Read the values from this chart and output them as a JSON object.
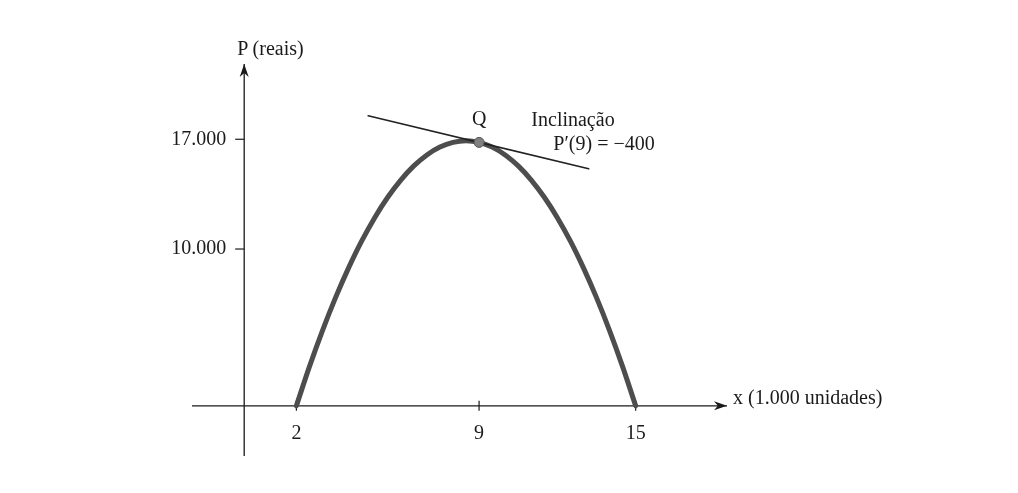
{
  "chart_data": {
    "type": "line",
    "xlabel": "x (1.000 unidades)",
    "ylabel": "P (reais)",
    "xlim": [
      -2,
      18.5
    ],
    "ylim": [
      -3200,
      21800
    ],
    "xticks": [
      2,
      9,
      15
    ],
    "yticks": [
      {
        "value": 10000,
        "label": "10.000"
      },
      {
        "value": 17000,
        "label": "17.000"
      }
    ],
    "marker": "none",
    "series": [
      {
        "color": "#4d4d4d",
        "x": [
          2,
          2.5,
          3,
          3.5,
          4,
          4.5,
          5,
          5.5,
          6,
          6.5,
          7,
          7.5,
          8,
          8.5,
          9,
          9.5,
          10,
          10.5,
          11,
          11.5,
          12,
          12.5,
          13,
          13.5,
          14,
          14.5,
          15
        ],
        "values": [
          0,
          2500,
          4800,
          6900,
          8800,
          10500,
          12000,
          13300,
          14400,
          15300,
          16000,
          16500,
          16800,
          16900,
          16800,
          16500,
          16000,
          15300,
          14400,
          13300,
          12000,
          10500,
          8800,
          6900,
          4800,
          2500,
          0
        ]
      },
      {
        "type": "line",
        "color": "#222222",
        "x": [
          4.75,
          13.2
        ],
        "values": [
          18500,
          15120
        ]
      },
      {
        "type": "scatter",
        "color": "#808080",
        "marker": "circle",
        "x": [
          9
        ],
        "values": [
          16800
        ]
      }
    ],
    "annotations": [
      "Q",
      "Inclinação",
      "P′(9) = −400"
    ]
  }
}
